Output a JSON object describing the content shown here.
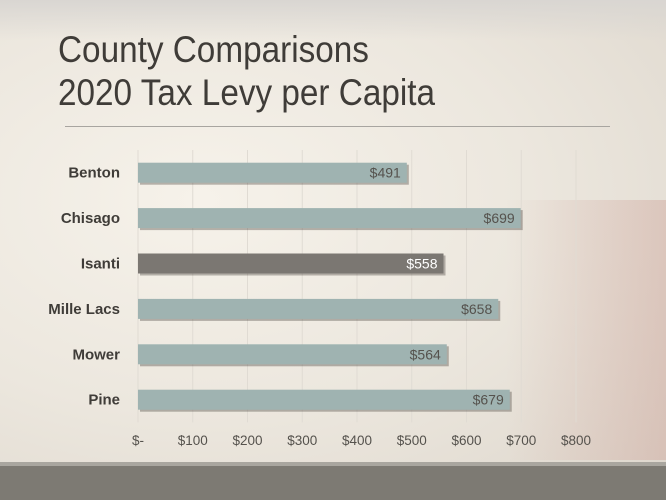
{
  "slide": {
    "title_line1": "County Comparisons",
    "title_line2": "2020 Tax Levy per Capita"
  },
  "colors": {
    "bar": "#9fb3b1",
    "highlight_bar": "#7b7772",
    "label_dark": "#55524d",
    "label_light": "#ffffff",
    "category_text": "#3f3c38"
  },
  "chart_data": {
    "type": "bar",
    "orientation": "horizontal",
    "categories": [
      "Benton",
      "Chisago",
      "Isanti",
      "Mille Lacs",
      "Mower",
      "Pine"
    ],
    "values": [
      491,
      699,
      558,
      658,
      564,
      679
    ],
    "data_labels": [
      "$491",
      "$699",
      "$558",
      "$658",
      "$564",
      "$679"
    ],
    "highlight": "Isanti",
    "xlim": [
      0,
      800
    ],
    "x_ticks": [
      0,
      100,
      200,
      300,
      400,
      500,
      600,
      700,
      800
    ],
    "x_tick_labels": [
      "$-",
      "$100",
      "$200",
      "$300",
      "$400",
      "$500",
      "$600",
      "$700",
      "$800"
    ],
    "grid": "vertical",
    "title": "",
    "xlabel": "",
    "ylabel": ""
  }
}
